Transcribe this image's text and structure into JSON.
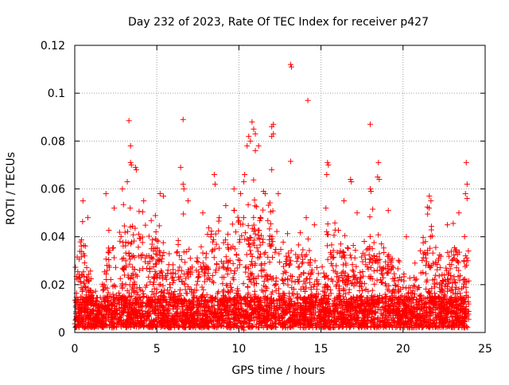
{
  "chart_data": {
    "type": "scatter",
    "title": "Day 232 of 2023, Rate Of TEC Index for receiver p427",
    "xlabel": "GPS time / hours",
    "ylabel": "ROTI / TECUs",
    "xlim": [
      0,
      25
    ],
    "ylim": [
      0,
      0.12
    ],
    "xticks": [
      0,
      5,
      10,
      15,
      20,
      25
    ],
    "xtick_labels": [
      "0",
      "5",
      "10",
      "15",
      "20",
      "25"
    ],
    "yticks": [
      0,
      0.02,
      0.04,
      0.06,
      0.08,
      0.1,
      0.12
    ],
    "ytick_labels": [
      "0",
      "0.02",
      "0.04",
      "0.06",
      "0.08",
      "0.1",
      "0.12"
    ],
    "grid": true,
    "marker": "+",
    "color": "#ff0000",
    "data_span_hours": [
      0,
      24
    ],
    "baseline_range": [
      0.002,
      0.015
    ],
    "dense_upper_envelope": [
      [
        0.0,
        0.03
      ],
      [
        0.5,
        0.046
      ],
      [
        1.0,
        0.02
      ],
      [
        1.5,
        0.012
      ],
      [
        2.0,
        0.04
      ],
      [
        2.5,
        0.045
      ],
      [
        3.0,
        0.05
      ],
      [
        3.5,
        0.045
      ],
      [
        4.0,
        0.045
      ],
      [
        4.5,
        0.04
      ],
      [
        5.0,
        0.048
      ],
      [
        5.5,
        0.035
      ],
      [
        6.0,
        0.03
      ],
      [
        6.5,
        0.046
      ],
      [
        7.0,
        0.035
      ],
      [
        7.5,
        0.03
      ],
      [
        8.0,
        0.035
      ],
      [
        8.5,
        0.046
      ],
      [
        9.0,
        0.035
      ],
      [
        9.5,
        0.045
      ],
      [
        10.0,
        0.05
      ],
      [
        10.5,
        0.055
      ],
      [
        11.0,
        0.06
      ],
      [
        11.5,
        0.045
      ],
      [
        12.0,
        0.05
      ],
      [
        12.5,
        0.035
      ],
      [
        13.0,
        0.04
      ],
      [
        13.5,
        0.035
      ],
      [
        14.0,
        0.04
      ],
      [
        14.5,
        0.03
      ],
      [
        15.0,
        0.02
      ],
      [
        15.5,
        0.045
      ],
      [
        16.0,
        0.04
      ],
      [
        16.5,
        0.04
      ],
      [
        17.0,
        0.035
      ],
      [
        17.5,
        0.03
      ],
      [
        18.0,
        0.045
      ],
      [
        18.5,
        0.045
      ],
      [
        19.0,
        0.035
      ],
      [
        19.5,
        0.03
      ],
      [
        20.0,
        0.025
      ],
      [
        20.5,
        0.02
      ],
      [
        21.0,
        0.03
      ],
      [
        21.5,
        0.05
      ],
      [
        22.0,
        0.035
      ],
      [
        22.5,
        0.025
      ],
      [
        23.0,
        0.04
      ],
      [
        23.5,
        0.035
      ],
      [
        24.0,
        0.04
      ]
    ],
    "notable_points": [
      {
        "x": 13.15,
        "y": 0.112
      },
      {
        "x": 13.2,
        "y": 0.111
      },
      {
        "x": 14.2,
        "y": 0.097
      },
      {
        "x": 3.3,
        "y": 0.0885
      },
      {
        "x": 6.6,
        "y": 0.089
      },
      {
        "x": 18.0,
        "y": 0.087
      },
      {
        "x": 10.8,
        "y": 0.088
      },
      {
        "x": 10.9,
        "y": 0.085
      },
      {
        "x": 11.0,
        "y": 0.083
      },
      {
        "x": 10.6,
        "y": 0.082
      },
      {
        "x": 10.7,
        "y": 0.08
      },
      {
        "x": 10.5,
        "y": 0.078
      },
      {
        "x": 12.1,
        "y": 0.087
      },
      {
        "x": 12.0,
        "y": 0.086
      },
      {
        "x": 12.1,
        "y": 0.083
      },
      {
        "x": 12.0,
        "y": 0.082
      },
      {
        "x": 11.2,
        "y": 0.078
      },
      {
        "x": 11.0,
        "y": 0.076
      },
      {
        "x": 12.0,
        "y": 0.068
      },
      {
        "x": 3.4,
        "y": 0.078
      },
      {
        "x": 3.4,
        "y": 0.071
      },
      {
        "x": 3.45,
        "y": 0.07
      },
      {
        "x": 3.7,
        "y": 0.069
      },
      {
        "x": 3.75,
        "y": 0.068
      },
      {
        "x": 6.45,
        "y": 0.069
      },
      {
        "x": 6.6,
        "y": 0.062
      },
      {
        "x": 6.65,
        "y": 0.06
      },
      {
        "x": 8.5,
        "y": 0.066
      },
      {
        "x": 8.55,
        "y": 0.062
      },
      {
        "x": 13.15,
        "y": 0.0715
      },
      {
        "x": 15.4,
        "y": 0.071
      },
      {
        "x": 15.45,
        "y": 0.07
      },
      {
        "x": 15.35,
        "y": 0.066
      },
      {
        "x": 16.8,
        "y": 0.064
      },
      {
        "x": 16.85,
        "y": 0.063
      },
      {
        "x": 18.5,
        "y": 0.071
      },
      {
        "x": 18.45,
        "y": 0.065
      },
      {
        "x": 18.55,
        "y": 0.064
      },
      {
        "x": 23.85,
        "y": 0.071
      },
      {
        "x": 23.9,
        "y": 0.062
      },
      {
        "x": 3.2,
        "y": 0.063
      },
      {
        "x": 2.9,
        "y": 0.06
      },
      {
        "x": 1.9,
        "y": 0.058
      },
      {
        "x": 0.5,
        "y": 0.055
      },
      {
        "x": 5.2,
        "y": 0.058
      },
      {
        "x": 5.4,
        "y": 0.057
      },
      {
        "x": 9.7,
        "y": 0.06
      },
      {
        "x": 10.1,
        "y": 0.058
      },
      {
        "x": 10.3,
        "y": 0.063
      },
      {
        "x": 10.35,
        "y": 0.066
      },
      {
        "x": 11.5,
        "y": 0.059
      },
      {
        "x": 11.6,
        "y": 0.058
      },
      {
        "x": 12.4,
        "y": 0.058
      },
      {
        "x": 14.1,
        "y": 0.048
      },
      {
        "x": 15.3,
        "y": 0.052
      },
      {
        "x": 16.4,
        "y": 0.055
      },
      {
        "x": 18.0,
        "y": 0.06
      },
      {
        "x": 18.05,
        "y": 0.059
      },
      {
        "x": 19.1,
        "y": 0.051
      },
      {
        "x": 21.6,
        "y": 0.057
      },
      {
        "x": 21.7,
        "y": 0.055
      },
      {
        "x": 23.4,
        "y": 0.05
      },
      {
        "x": 23.8,
        "y": 0.058
      },
      {
        "x": 23.9,
        "y": 0.056
      },
      {
        "x": 17.2,
        "y": 0.05
      },
      {
        "x": 20.2,
        "y": 0.04
      },
      {
        "x": 22.7,
        "y": 0.045
      },
      {
        "x": 6.9,
        "y": 0.055
      },
      {
        "x": 4.2,
        "y": 0.055
      },
      {
        "x": 7.8,
        "y": 0.05
      },
      {
        "x": 8.8,
        "y": 0.048
      },
      {
        "x": 9.2,
        "y": 0.053
      },
      {
        "x": 14.6,
        "y": 0.045
      },
      {
        "x": 0.8,
        "y": 0.048
      },
      {
        "x": 2.4,
        "y": 0.052
      },
      {
        "x": 10.2,
        "y": 0.002
      },
      {
        "x": 10.3,
        "y": 0.001
      }
    ]
  }
}
